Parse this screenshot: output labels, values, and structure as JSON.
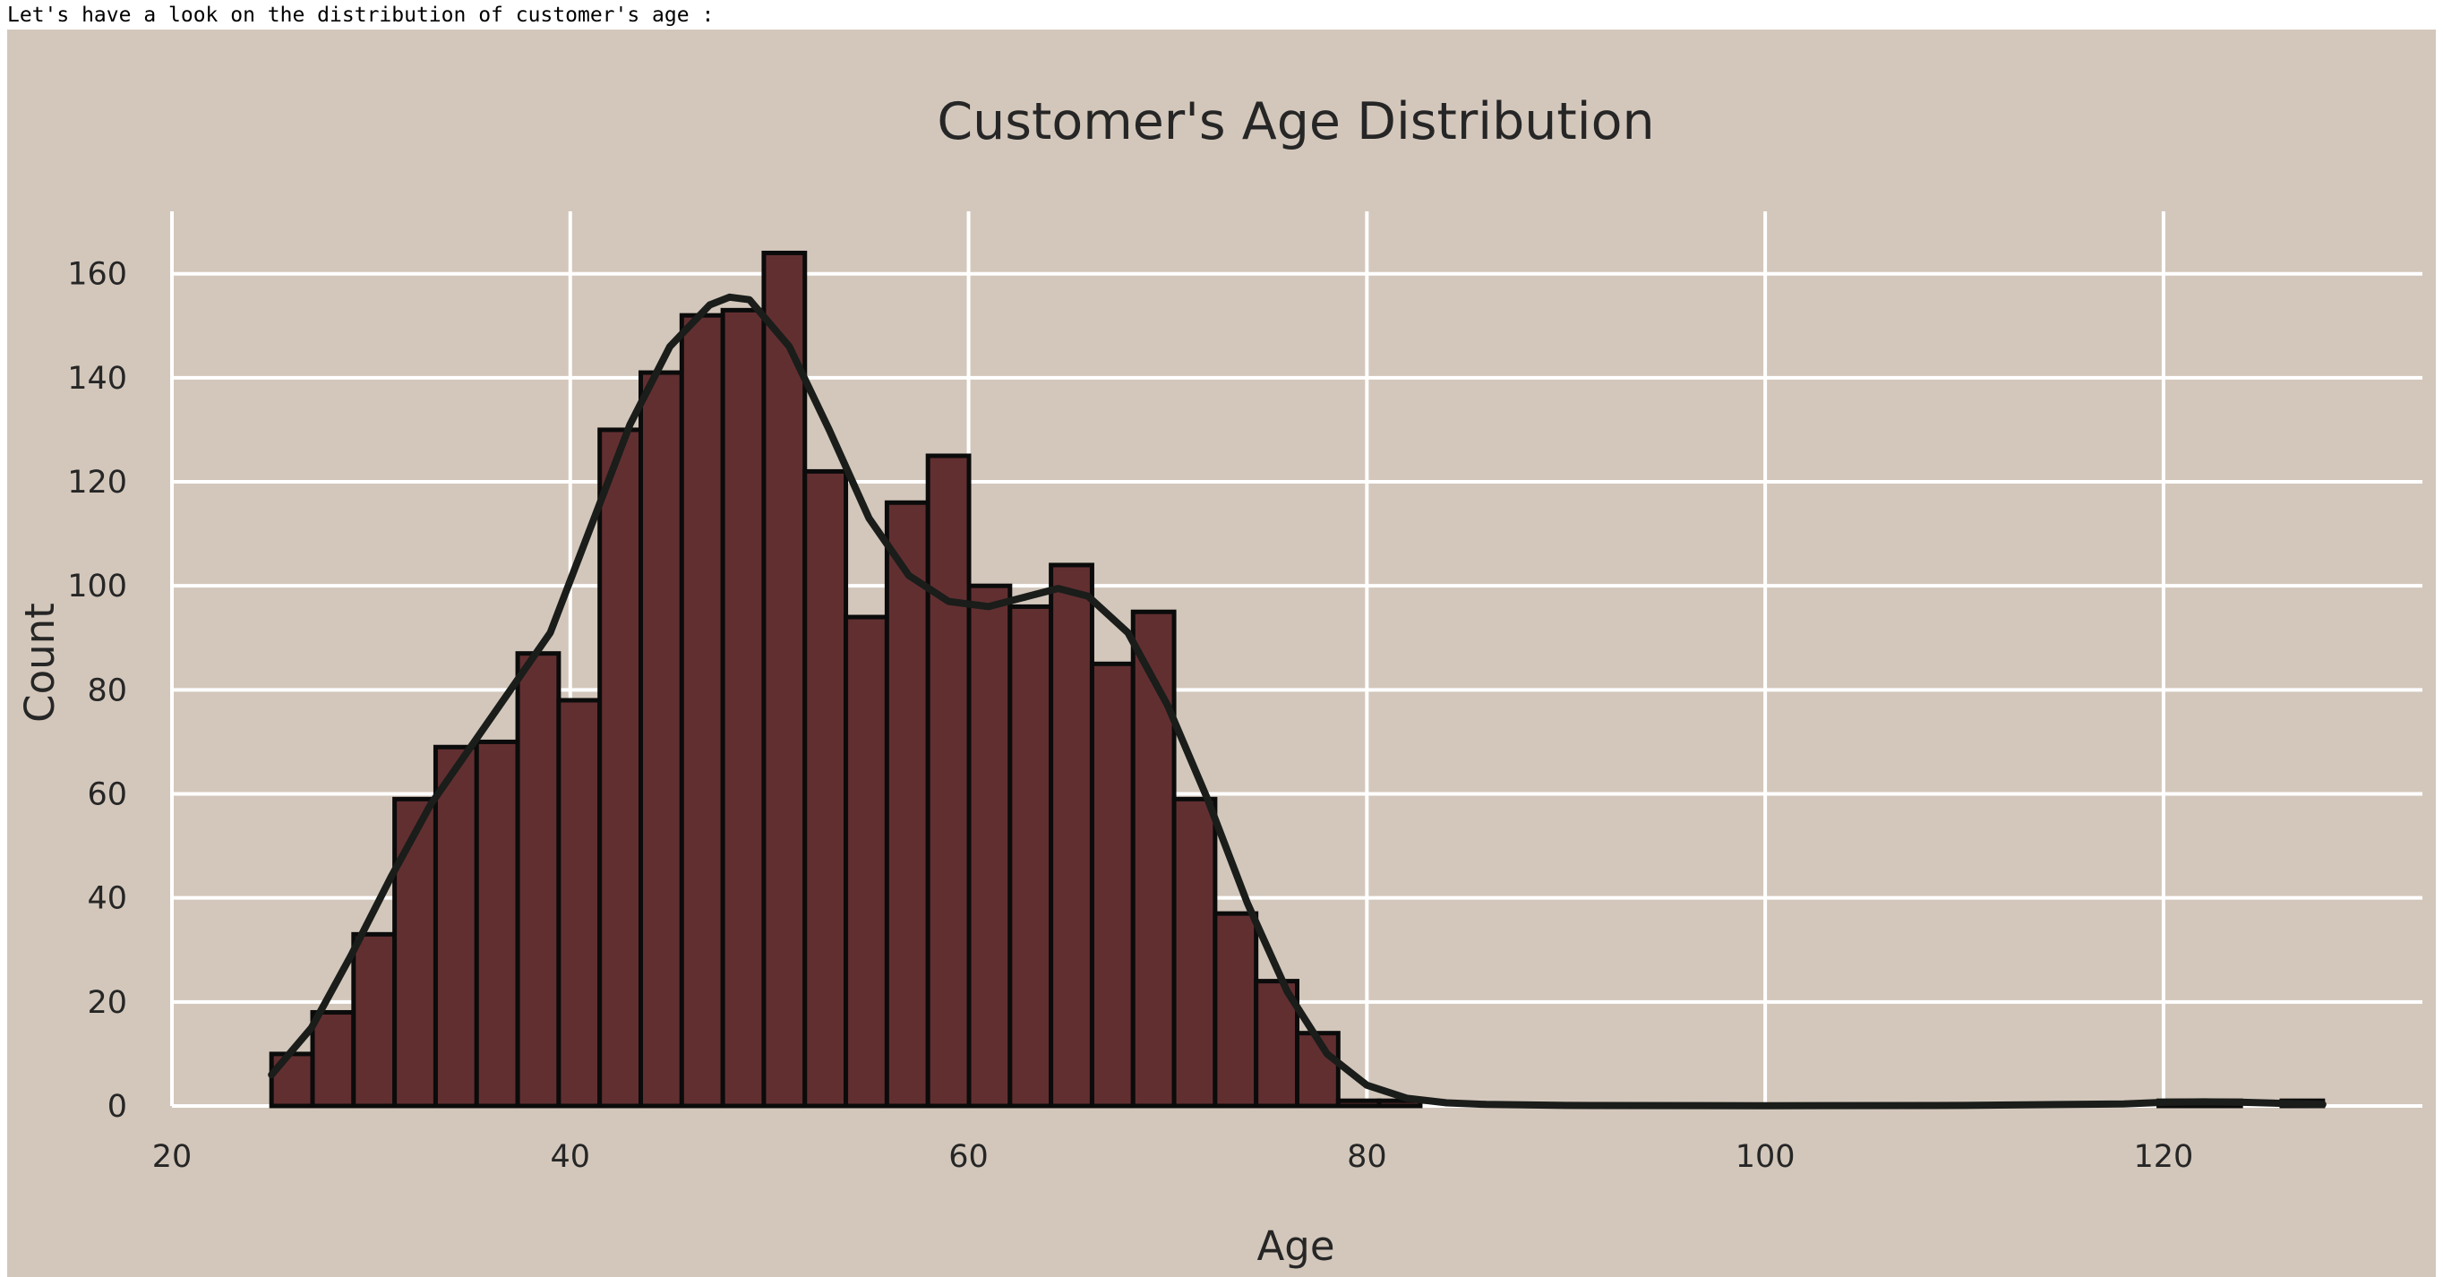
{
  "caption": "Let's have a look on the distribution of customer's age :",
  "colors": {
    "background": "#d3c7bb",
    "bar": "#622f31",
    "bar_edge": "#0b0b0b",
    "kde": "#1a1d1a",
    "grid": "#ffffff"
  },
  "chart_data": {
    "type": "bar",
    "title": "Customer's Age Distribution",
    "xlabel": "Age",
    "ylabel": "Count",
    "xlim": [
      20,
      133
    ],
    "ylim": [
      0,
      172
    ],
    "xticks": [
      20,
      40,
      60,
      80,
      100,
      120
    ],
    "yticks": [
      0,
      20,
      40,
      60,
      80,
      100,
      120,
      140,
      160
    ],
    "grid": true,
    "bin_width": 2.06,
    "bins": [
      {
        "x0": 25.0,
        "count": 10
      },
      {
        "x0": 27.06,
        "count": 18
      },
      {
        "x0": 29.12,
        "count": 33
      },
      {
        "x0": 31.18,
        "count": 59
      },
      {
        "x0": 33.24,
        "count": 69
      },
      {
        "x0": 35.3,
        "count": 70
      },
      {
        "x0": 37.36,
        "count": 87
      },
      {
        "x0": 39.42,
        "count": 78
      },
      {
        "x0": 41.48,
        "count": 130
      },
      {
        "x0": 43.54,
        "count": 141
      },
      {
        "x0": 45.6,
        "count": 152
      },
      {
        "x0": 47.66,
        "count": 153
      },
      {
        "x0": 49.72,
        "count": 164
      },
      {
        "x0": 51.78,
        "count": 122
      },
      {
        "x0": 53.84,
        "count": 94
      },
      {
        "x0": 55.9,
        "count": 116
      },
      {
        "x0": 57.96,
        "count": 125
      },
      {
        "x0": 60.02,
        "count": 100
      },
      {
        "x0": 62.08,
        "count": 96
      },
      {
        "x0": 64.14,
        "count": 104
      },
      {
        "x0": 66.2,
        "count": 85
      },
      {
        "x0": 68.26,
        "count": 95
      },
      {
        "x0": 70.32,
        "count": 59
      },
      {
        "x0": 72.38,
        "count": 37
      },
      {
        "x0": 74.44,
        "count": 24
      },
      {
        "x0": 76.5,
        "count": 14
      },
      {
        "x0": 78.56,
        "count": 1
      },
      {
        "x0": 80.62,
        "count": 1
      },
      {
        "x0": 119.76,
        "count": 1
      },
      {
        "x0": 121.82,
        "count": 1
      },
      {
        "x0": 125.94,
        "count": 1
      }
    ],
    "kde": {
      "x": [
        25,
        27,
        29,
        31,
        33,
        35,
        37,
        39,
        41,
        43,
        45,
        47,
        48,
        49,
        51,
        53,
        55,
        57,
        59,
        61,
        63,
        64.5,
        66,
        68,
        70,
        72,
        74,
        76,
        78,
        80,
        82,
        84,
        86,
        90,
        100,
        110,
        118,
        120,
        122,
        124,
        126,
        128
      ],
      "y": [
        6,
        15,
        29,
        44,
        58,
        69,
        80,
        91,
        111,
        131,
        146,
        154,
        155.5,
        155,
        146,
        130,
        113,
        102,
        97,
        96,
        98,
        99.5,
        98,
        91,
        77,
        59,
        39,
        22,
        10,
        4,
        1.5,
        0.6,
        0.3,
        0.1,
        0.05,
        0.1,
        0.4,
        0.7,
        0.8,
        0.7,
        0.5,
        0.3
      ]
    }
  }
}
